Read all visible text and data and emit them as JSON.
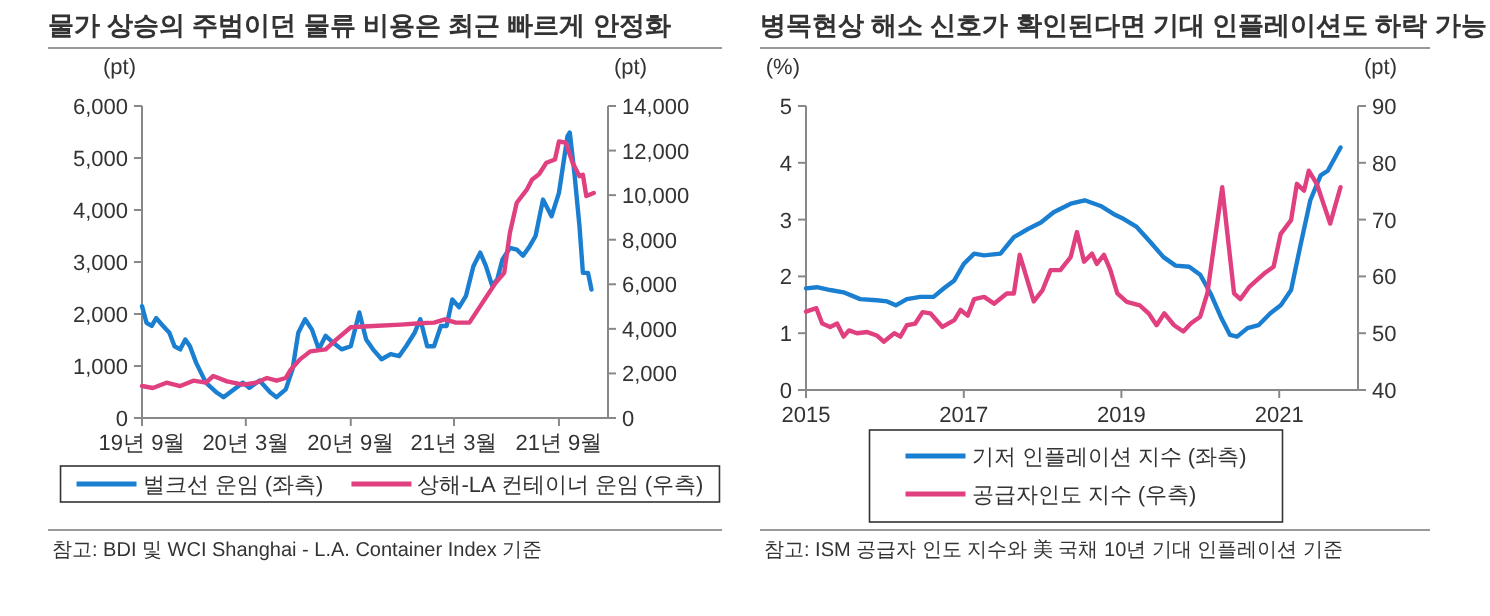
{
  "chart_data": [
    {
      "type": "line",
      "title": "물가 상승의 주범이던 물류 비용은 최근 빠르게 안정화",
      "ylabel": "(pt)",
      "y2label": "(pt)",
      "legend": "bottom",
      "xlim": [
        "2019-09-01",
        "2021-11-26"
      ],
      "xticks": [
        {
          "value": "2019-09-01",
          "label": "19년 9월"
        },
        {
          "value": "2020-03-01",
          "label": "20년 3월"
        },
        {
          "value": "2020-09-01",
          "label": "20년 9월"
        },
        {
          "value": "2021-03-01",
          "label": "21년 3월"
        },
        {
          "value": "2021-09-01",
          "label": "21년 9월"
        }
      ],
      "ylim": [
        0,
        6000
      ],
      "yticks": [
        {
          "value": 0,
          "label": "0"
        },
        {
          "value": 1000,
          "label": "1,000"
        },
        {
          "value": 2000,
          "label": "2,000"
        },
        {
          "value": 3000,
          "label": "3,000"
        },
        {
          "value": 4000,
          "label": "4,000"
        },
        {
          "value": 5000,
          "label": "5,000"
        },
        {
          "value": 6000,
          "label": "6,000"
        }
      ],
      "y2lim": [
        0,
        14000
      ],
      "y2ticks": [
        {
          "value": 0,
          "label": "0"
        },
        {
          "value": 2000,
          "label": "2,000"
        },
        {
          "value": 4000,
          "label": "4,000"
        },
        {
          "value": 6000,
          "label": "6,000"
        },
        {
          "value": 8000,
          "label": "8,000"
        },
        {
          "value": 10000,
          "label": "10,000"
        },
        {
          "value": 12000,
          "label": "12,000"
        },
        {
          "value": 14000,
          "label": "14,000"
        }
      ],
      "series": [
        {
          "name": "벌크선 운임 (좌측)",
          "color": "#1a7fd0",
          "x": [
            "2019-09-01",
            "2019-09-09",
            "2019-09-18",
            "2019-09-26",
            "2019-10-08",
            "2019-10-19",
            "2019-10-28",
            "2019-11-07",
            "2019-11-16",
            "2019-11-24",
            "2019-12-05",
            "2019-12-22",
            "2020-01-10",
            "2020-01-22",
            "2020-02-09",
            "2020-02-25",
            "2020-03-07",
            "2020-03-25",
            "2020-04-13",
            "2020-04-24",
            "2020-05-10",
            "2020-05-22",
            "2020-06-01",
            "2020-06-13",
            "2020-06-25",
            "2020-07-07",
            "2020-07-19",
            "2020-08-01",
            "2020-08-16",
            "2020-09-01",
            "2020-09-16",
            "2020-09-28",
            "2020-10-10",
            "2020-10-25",
            "2020-11-10",
            "2020-11-25",
            "2020-12-07",
            "2020-12-22",
            "2021-01-01",
            "2021-01-13",
            "2021-01-25",
            "2021-02-06",
            "2021-02-16",
            "2021-02-26",
            "2021-03-10",
            "2021-03-22",
            "2021-04-04",
            "2021-04-16",
            "2021-04-26",
            "2021-05-07",
            "2021-05-16",
            "2021-05-25",
            "2021-06-07",
            "2021-06-19",
            "2021-06-30",
            "2021-07-12",
            "2021-07-22",
            "2021-08-04",
            "2021-08-19",
            "2021-09-01",
            "2021-09-16",
            "2021-09-20",
            "2021-09-28",
            "2021-10-07",
            "2021-10-13",
            "2021-10-22",
            "2021-10-28"
          ],
          "values": [
            2150,
            1830,
            1770,
            1920,
            1770,
            1640,
            1380,
            1320,
            1510,
            1380,
            1060,
            680,
            490,
            400,
            550,
            680,
            580,
            720,
            490,
            400,
            550,
            940,
            1640,
            1900,
            1700,
            1320,
            1580,
            1450,
            1320,
            1380,
            2030,
            1510,
            1320,
            1130,
            1230,
            1190,
            1380,
            1640,
            1900,
            1380,
            1380,
            1770,
            1770,
            2280,
            2130,
            2350,
            2920,
            3180,
            2920,
            2540,
            2670,
            3050,
            3270,
            3240,
            3120,
            3310,
            3500,
            4200,
            3880,
            4330,
            5420,
            5490,
            4720,
            3690,
            2790,
            2790,
            2470
          ]
        },
        {
          "name": "상해-LA 컨테이너 운임 (우측)",
          "color": "#e0407f",
          "axis": "y2",
          "x": [
            "2019-09-01",
            "2019-09-20",
            "2019-10-14",
            "2019-11-07",
            "2019-11-30",
            "2019-12-22",
            "2020-01-04",
            "2020-01-28",
            "2020-02-25",
            "2020-03-19",
            "2020-04-07",
            "2020-04-24",
            "2020-05-10",
            "2020-05-19",
            "2020-06-04",
            "2020-06-22",
            "2020-07-19",
            "2020-08-07",
            "2020-09-01",
            "2020-10-10",
            "2020-11-28",
            "2021-01-01",
            "2021-01-25",
            "2021-02-13",
            "2021-03-04",
            "2021-03-28",
            "2021-04-16",
            "2021-05-13",
            "2021-05-28",
            "2021-06-07",
            "2021-06-19",
            "2021-07-07",
            "2021-07-16",
            "2021-07-28",
            "2021-08-10",
            "2021-08-25",
            "2021-09-01",
            "2021-09-13",
            "2021-09-25",
            "2021-10-07",
            "2021-10-13",
            "2021-10-19",
            "2021-11-01"
          ],
          "values": [
            1435,
            1345,
            1585,
            1435,
            1675,
            1585,
            1885,
            1645,
            1495,
            1585,
            1795,
            1675,
            1795,
            2180,
            2630,
            2990,
            3080,
            3530,
            4070,
            4130,
            4190,
            4250,
            4280,
            4430,
            4280,
            4280,
            5020,
            6070,
            6520,
            8310,
            9660,
            10260,
            10700,
            10940,
            11450,
            11600,
            12410,
            12350,
            11450,
            10850,
            10910,
            9960,
            10100
          ]
        }
      ],
      "annotations": [
        "참고: BDI 및 WCI Shanghai - L.A. Container Index 기준"
      ]
    },
    {
      "type": "line",
      "title": "병목현상 해소 신호가 확인된다면 기대 인플레이션도 하락 가능",
      "ylabel": "(%)",
      "y2label": "(pt)",
      "legend": "bottom",
      "xlim": [
        "2015-01-01",
        "2022-01-01"
      ],
      "xticks": [
        {
          "value": "2015-01-01",
          "label": "2015"
        },
        {
          "value": "2017-01-01",
          "label": "2017"
        },
        {
          "value": "2019-01-01",
          "label": "2019"
        },
        {
          "value": "2021-01-01",
          "label": "2021"
        }
      ],
      "ylim": [
        0,
        5
      ],
      "yticks": [
        0,
        1,
        2,
        3,
        4,
        5
      ],
      "y2lim": [
        40,
        90
      ],
      "y2ticks": [
        40,
        50,
        60,
        70,
        80,
        90
      ],
      "series": [
        {
          "name": "기저 인플레이션 지수 (좌측)",
          "color": "#1a7fd0",
          "x": [
            "2015-01-01",
            "2015-02-21",
            "2015-04-23",
            "2015-06-24",
            "2015-09-09",
            "2015-11-25",
            "2016-01-12",
            "2016-02-21",
            "2016-04-12",
            "2016-06-13",
            "2016-08-14",
            "2016-10-01",
            "2016-11-18",
            "2017-01-01",
            "2017-02-18",
            "2017-04-05",
            "2017-06-20",
            "2017-08-21",
            "2017-10-23",
            "2017-12-24",
            "2018-02-21",
            "2018-05-11",
            "2018-07-15",
            "2018-09-27",
            "2018-11-25",
            "2019-01-12",
            "2019-03-13",
            "2019-05-14",
            "2019-07-15",
            "2019-09-09",
            "2019-11-11",
            "2020-01-01",
            "2020-02-18",
            "2020-04-05",
            "2020-05-18",
            "2020-06-20",
            "2020-08-07",
            "2020-09-27",
            "2020-11-21",
            "2021-01-08",
            "2021-02-25",
            "2021-04-08",
            "2021-05-25",
            "2021-07-12",
            "2021-08-14",
            "2021-10-12"
          ],
          "values": [
            1.79,
            1.81,
            1.76,
            1.72,
            1.6,
            1.58,
            1.56,
            1.49,
            1.6,
            1.64,
            1.64,
            1.79,
            1.93,
            2.22,
            2.4,
            2.37,
            2.4,
            2.69,
            2.83,
            2.95,
            3.13,
            3.28,
            3.34,
            3.24,
            3.1,
            3.01,
            2.87,
            2.61,
            2.34,
            2.19,
            2.17,
            2.03,
            1.7,
            1.29,
            0.97,
            0.94,
            1.09,
            1.14,
            1.35,
            1.49,
            1.76,
            2.52,
            3.34,
            3.78,
            3.86,
            4.27
          ]
        },
        {
          "name": "공급자인도 지수 (우측)",
          "color": "#e0407f",
          "axis": "y2",
          "x": [
            "2015-01-01",
            "2015-02-18",
            "2015-03-17",
            "2015-04-23",
            "2015-05-25",
            "2015-06-24",
            "2015-07-19",
            "2015-08-25",
            "2015-10-12",
            "2015-11-25",
            "2015-12-27",
            "2016-02-14",
            "2016-03-13",
            "2016-04-12",
            "2016-05-21",
            "2016-06-24",
            "2016-07-30",
            "2016-09-24",
            "2016-11-18",
            "2016-12-17",
            "2017-01-19",
            "2017-02-18",
            "2017-04-05",
            "2017-05-21",
            "2017-07-19",
            "2017-08-21",
            "2017-09-17",
            "2017-11-21",
            "2018-01-01",
            "2018-02-07",
            "2018-03-24",
            "2018-05-11",
            "2018-06-09",
            "2018-07-12",
            "2018-08-18",
            "2018-09-09",
            "2018-10-12",
            "2018-11-11",
            "2018-12-13",
            "2019-01-26",
            "2019-03-27",
            "2019-05-07",
            "2019-06-13",
            "2019-07-19",
            "2019-09-02",
            "2019-10-15",
            "2019-11-18",
            "2020-01-01",
            "2020-02-03",
            "2020-04-12",
            "2020-06-06",
            "2020-07-05",
            "2020-08-14",
            "2020-10-23",
            "2020-12-06",
            "2021-01-08",
            "2021-02-25",
            "2021-03-24",
            "2021-04-26",
            "2021-05-18",
            "2021-06-24",
            "2021-08-25",
            "2021-10-12"
          ],
          "values": [
            53.8,
            54.4,
            51.7,
            51.1,
            51.7,
            49.4,
            50.5,
            50,
            50.2,
            49.6,
            48.5,
            50,
            49.4,
            51.4,
            51.7,
            53.7,
            53.5,
            51.1,
            52.3,
            54.1,
            53.1,
            56,
            56.4,
            55.2,
            57,
            57,
            63.8,
            55.6,
            57.6,
            61.1,
            61.1,
            63.4,
            67.8,
            62.6,
            64,
            62.2,
            63.8,
            61.1,
            57,
            55.5,
            54.9,
            53.5,
            51.4,
            53.5,
            51.4,
            50.3,
            51.7,
            52.9,
            57,
            75.7,
            57,
            56,
            58.1,
            60.5,
            61.7,
            67.5,
            69.9,
            76.3,
            75.1,
            78.6,
            76.3,
            69.3,
            75.7
          ]
        }
      ],
      "annotations": [
        "참고: ISM 공급자 인도 지수와 美 국채 10년 기대 인플레이션 기준"
      ]
    }
  ]
}
